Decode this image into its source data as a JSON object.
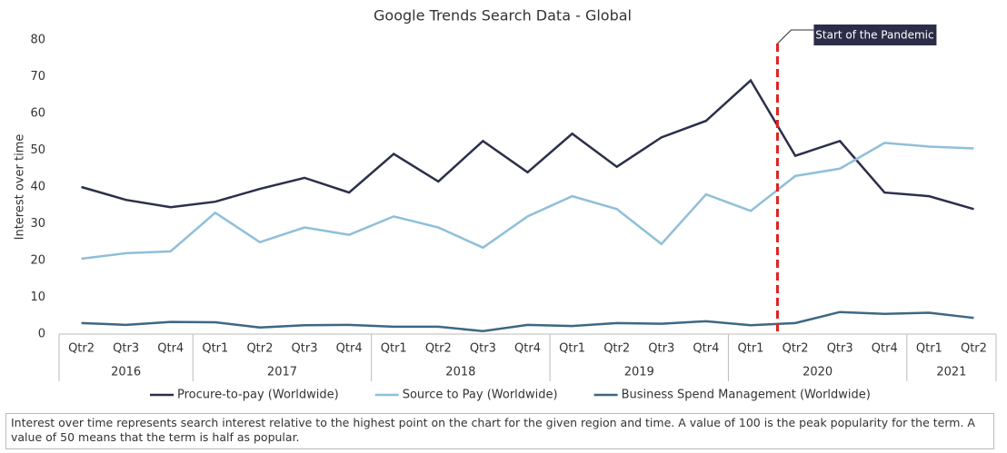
{
  "chart_data": {
    "type": "line",
    "title": "Google Trends Search Data - Global",
    "y_label": "Interest over time",
    "categories": [
      "Qtr2",
      "Qtr3",
      "Qtr4",
      "Qtr1",
      "Qtr2",
      "Qtr3",
      "Qtr4",
      "Qtr1",
      "Qtr2",
      "Qtr3",
      "Qtr4",
      "Qtr1",
      "Qtr2",
      "Qtr3",
      "Qtr4",
      "Qtr1",
      "Qtr2",
      "Qtr3",
      "Qtr4",
      "Qtr1",
      "Qtr2"
    ],
    "year_groups": [
      {
        "label": "2016",
        "count": 3
      },
      {
        "label": "2017",
        "count": 4
      },
      {
        "label": "2018",
        "count": 4
      },
      {
        "label": "2019",
        "count": 4
      },
      {
        "label": "2020",
        "count": 4
      },
      {
        "label": "2021",
        "count": 2
      }
    ],
    "series": [
      {
        "name": "Procure-to-pay (Worldwide)",
        "color": "#2c2f4a",
        "values": [
          40,
          36.5,
          34.5,
          36,
          39.5,
          42.5,
          38.5,
          49,
          41.5,
          52.5,
          44,
          54.5,
          45.5,
          53.5,
          58,
          69,
          48.5,
          52.5,
          38.5,
          37.5,
          34
        ]
      },
      {
        "name": "Source to Pay (Worldwide)",
        "color": "#8fbfd9",
        "values": [
          20.5,
          22,
          22.5,
          33,
          25,
          29,
          27,
          32,
          29,
          23.5,
          32,
          37.5,
          34,
          24.5,
          38,
          33.5,
          43,
          45,
          52,
          51,
          50.5
        ]
      },
      {
        "name": "Business Spend Management (Worldwide)",
        "color": "#3d6785",
        "values": [
          3,
          2.5,
          3.3,
          3.2,
          1.8,
          2.4,
          2.5,
          2,
          2,
          0.8,
          2.5,
          2.2,
          3,
          2.8,
          3.5,
          2.4,
          3,
          6,
          5.5,
          5.8,
          4.4
        ]
      }
    ],
    "ylim": [
      0,
      80
    ],
    "yticks": [
      0,
      10,
      20,
      30,
      40,
      50,
      60,
      70,
      80
    ],
    "annotation": "Start of the Pandemic",
    "annotation_color": "#e02020",
    "note": "Interest over time represents search interest relative to the highest point on the chart for the given region and time. A value of 100 is the peak popularity for the term. A value of 50 means that the term is half as popular."
  }
}
